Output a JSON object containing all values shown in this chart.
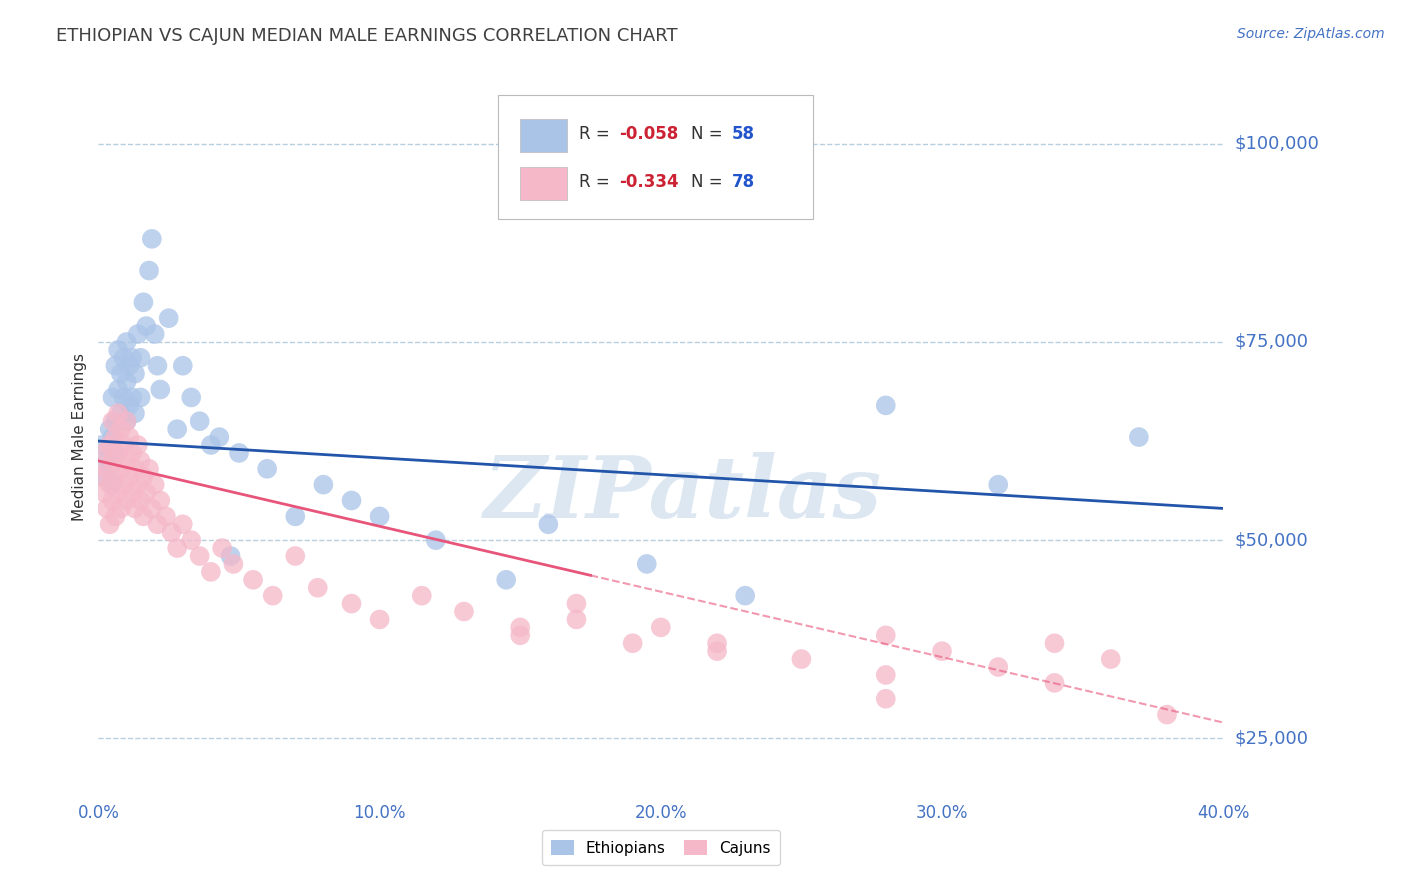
{
  "title": "ETHIOPIAN VS CAJUN MEDIAN MALE EARNINGS CORRELATION CHART",
  "source_text": "Source: ZipAtlas.com",
  "ylabel": "Median Male Earnings",
  "xlim": [
    0.0,
    0.4
  ],
  "ylim": [
    18000,
    108000
  ],
  "yticks": [
    25000,
    50000,
    75000,
    100000
  ],
  "ytick_labels": [
    "$25,000",
    "$50,000",
    "$75,000",
    "$100,000"
  ],
  "xticks": [
    0.0,
    0.1,
    0.2,
    0.3,
    0.4
  ],
  "xtick_labels": [
    "0.0%",
    "10.0%",
    "20.0%",
    "30.0%",
    "40.0%"
  ],
  "background_color": "#ffffff",
  "grid_color": "#b8cfe0",
  "title_color": "#404040",
  "axis_label_color": "#333333",
  "tick_label_color": "#4472c4",
  "source_color": "#4472c4",
  "watermark_text": "ZIPatlas",
  "watermark_color": "#c5d8ea",
  "watermark_alpha": 0.6,
  "series": [
    {
      "name": "Ethiopians",
      "R": -0.058,
      "N": 58,
      "dot_color": "#aac4e8",
      "edge_color": "#7aaad0",
      "trend_color": "#2255aa",
      "trend_style": "solid",
      "trend_x0": 0.0,
      "trend_y0": 62500,
      "trend_x1": 0.4,
      "trend_y1": 54000,
      "x": [
        0.001,
        0.002,
        0.003,
        0.004,
        0.004,
        0.005,
        0.005,
        0.005,
        0.006,
        0.006,
        0.006,
        0.007,
        0.007,
        0.008,
        0.008,
        0.009,
        0.009,
        0.01,
        0.01,
        0.01,
        0.011,
        0.011,
        0.012,
        0.012,
        0.013,
        0.013,
        0.014,
        0.015,
        0.015,
        0.016,
        0.017,
        0.018,
        0.019,
        0.02,
        0.021,
        0.022,
        0.025,
        0.028,
        0.03,
        0.033,
        0.036,
        0.04,
        0.043,
        0.047,
        0.05,
        0.06,
        0.07,
        0.08,
        0.09,
        0.1,
        0.12,
        0.145,
        0.16,
        0.195,
        0.23,
        0.28,
        0.32,
        0.37
      ],
      "y": [
        62000,
        58000,
        60000,
        64000,
        59000,
        68000,
        63000,
        57000,
        65000,
        61000,
        72000,
        69000,
        74000,
        71000,
        66000,
        73000,
        68000,
        70000,
        65000,
        75000,
        72000,
        67000,
        73000,
        68000,
        71000,
        66000,
        76000,
        73000,
        68000,
        80000,
        77000,
        84000,
        88000,
        76000,
        72000,
        69000,
        78000,
        64000,
        72000,
        68000,
        65000,
        62000,
        63000,
        48000,
        61000,
        59000,
        53000,
        57000,
        55000,
        53000,
        50000,
        45000,
        52000,
        47000,
        43000,
        67000,
        57000,
        63000
      ]
    },
    {
      "name": "Cajuns",
      "R": -0.334,
      "N": 78,
      "dot_color": "#f5b8c8",
      "edge_color": "#e888a0",
      "trend_color": "#e8557a",
      "trend_solid_x1": 0.175,
      "trend_x0": 0.0,
      "trend_y0": 60000,
      "trend_x1": 0.4,
      "trend_y1": 27000,
      "x": [
        0.001,
        0.002,
        0.002,
        0.003,
        0.003,
        0.004,
        0.004,
        0.004,
        0.005,
        0.005,
        0.005,
        0.006,
        0.006,
        0.006,
        0.007,
        0.007,
        0.007,
        0.008,
        0.008,
        0.008,
        0.009,
        0.009,
        0.01,
        0.01,
        0.01,
        0.011,
        0.011,
        0.012,
        0.012,
        0.013,
        0.013,
        0.014,
        0.014,
        0.015,
        0.015,
        0.016,
        0.016,
        0.017,
        0.018,
        0.019,
        0.02,
        0.021,
        0.022,
        0.024,
        0.026,
        0.028,
        0.03,
        0.033,
        0.036,
        0.04,
        0.044,
        0.048,
        0.055,
        0.062,
        0.07,
        0.078,
        0.09,
        0.1,
        0.115,
        0.13,
        0.15,
        0.17,
        0.2,
        0.22,
        0.25,
        0.28,
        0.3,
        0.32,
        0.34,
        0.36,
        0.28,
        0.17,
        0.22,
        0.38,
        0.19,
        0.15,
        0.34,
        0.28
      ],
      "y": [
        58000,
        61000,
        56000,
        59000,
        54000,
        62000,
        57000,
        52000,
        65000,
        60000,
        55000,
        63000,
        58000,
        53000,
        66000,
        61000,
        56000,
        64000,
        59000,
        54000,
        62000,
        57000,
        65000,
        60000,
        55000,
        63000,
        58000,
        61000,
        56000,
        59000,
        54000,
        62000,
        57000,
        60000,
        55000,
        58000,
        53000,
        56000,
        59000,
        54000,
        57000,
        52000,
        55000,
        53000,
        51000,
        49000,
        52000,
        50000,
        48000,
        46000,
        49000,
        47000,
        45000,
        43000,
        48000,
        44000,
        42000,
        40000,
        43000,
        41000,
        38000,
        42000,
        39000,
        37000,
        35000,
        38000,
        36000,
        34000,
        37000,
        35000,
        33000,
        40000,
        36000,
        28000,
        37000,
        39000,
        32000,
        30000
      ]
    }
  ]
}
